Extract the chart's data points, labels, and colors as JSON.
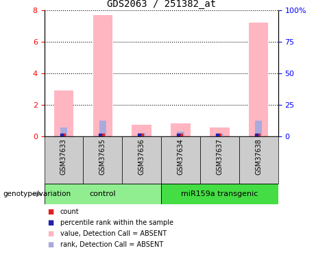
{
  "title": "GDS2063 / 251382_at",
  "samples": [
    "GSM37633",
    "GSM37635",
    "GSM37636",
    "GSM37634",
    "GSM37637",
    "GSM37638"
  ],
  "pink_values": [
    2.9,
    7.7,
    0.75,
    0.8,
    0.55,
    7.2
  ],
  "blue_values": [
    0.55,
    1.0,
    0.22,
    0.28,
    0.18,
    1.0
  ],
  "ylim_left": [
    0,
    8
  ],
  "ylim_right": [
    0,
    100
  ],
  "yticks_left": [
    0,
    2,
    4,
    6,
    8
  ],
  "ytick_labels_right": [
    "0",
    "25",
    "50",
    "75",
    "100%"
  ],
  "pink_color": "#ffb6c1",
  "blue_color": "#aaaadd",
  "red_color": "#dd2222",
  "dark_blue_color": "#2222aa",
  "ctrl_color": "#90ee90",
  "mir_color": "#44dd44",
  "tick_box_color": "#cccccc",
  "label_group": "genotype/variation",
  "legend_items": [
    {
      "label": "count",
      "color": "#dd2222"
    },
    {
      "label": "percentile rank within the sample",
      "color": "#2222aa"
    },
    {
      "label": "value, Detection Call = ABSENT",
      "color": "#ffb6c1"
    },
    {
      "label": "rank, Detection Call = ABSENT",
      "color": "#aaaadd"
    }
  ]
}
